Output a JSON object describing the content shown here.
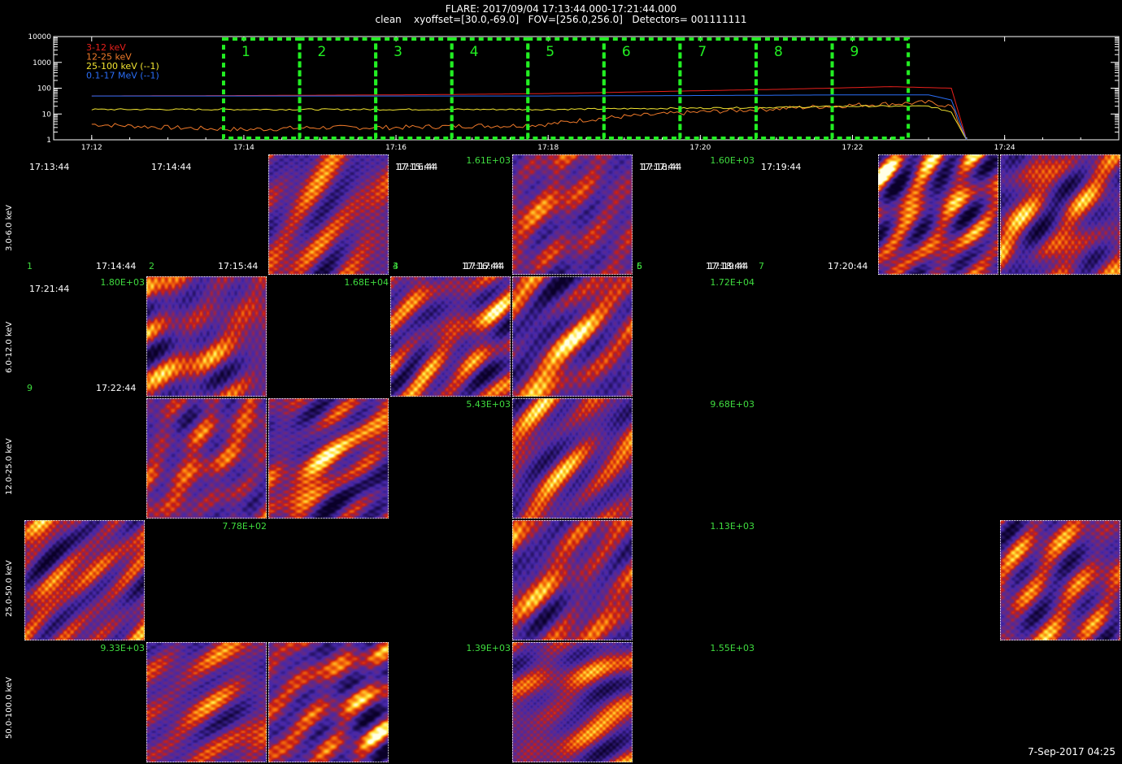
{
  "header": {
    "line1": "FLARE: 2017/09/04 17:13:44.000-17:21:44.000",
    "line2": "clean    xyoffset=[30.0,-69.0]   FOV=[256.0,256.0]   Detectors= 001111111"
  },
  "chart_data": {
    "type": "line",
    "title": "",
    "y_scale": "log",
    "ylim": [
      1,
      10000
    ],
    "y_ticks": [
      "1",
      "10",
      "100",
      "1000",
      "10000"
    ],
    "x_ticks": [
      "17:12",
      "17:14",
      "17:16",
      "17:18",
      "17:20",
      "17:22",
      "17:24"
    ],
    "x_range_minutes": [
      "17:11.5",
      "17:25.5"
    ],
    "legend": [
      {
        "label": "3-12 keV",
        "color": "#e8201c"
      },
      {
        "label": "12-25 keV",
        "color": "#f07a2a"
      },
      {
        "label": "25-100 keV (--1)",
        "color": "#f2e431"
      },
      {
        "label": "0.1-17 MeV (--1)",
        "color": "#2a6df5"
      }
    ],
    "series": [
      {
        "name": "3-12 keV",
        "color": "#e8201c",
        "t": [
          "17:12",
          "17:14",
          "17:16",
          "17:17",
          "17:18",
          "17:19",
          "17:20",
          "17:21",
          "17:22",
          "17:22.5",
          "17:23.3",
          "17:23.5"
        ],
        "values": [
          50,
          52,
          55,
          58,
          62,
          70,
          80,
          90,
          105,
          115,
          100,
          1
        ]
      },
      {
        "name": "12-25 keV",
        "color": "#f07a2a",
        "t": [
          "17:12",
          "17:13",
          "17:14",
          "17:15",
          "17:16",
          "17:17",
          "17:17.5",
          "17:18",
          "17:18.5",
          "17:19",
          "17:20",
          "17:21",
          "17:22",
          "17:23",
          "17:23.3",
          "17:23.5"
        ],
        "values": [
          4,
          3,
          2.5,
          3,
          3,
          3.5,
          3.5,
          4,
          6,
          8,
          12,
          16,
          22,
          28,
          20,
          1
        ]
      },
      {
        "name": "25-100 keV (--1)",
        "color": "#f2e431",
        "t": [
          "17:12",
          "17:14",
          "17:16",
          "17:18",
          "17:19",
          "17:20",
          "17:21",
          "17:22",
          "17:23",
          "17:23.3",
          "17:23.5"
        ],
        "values": [
          15,
          15,
          15,
          15,
          16,
          17,
          18,
          20,
          20,
          12,
          1
        ]
      },
      {
        "name": "0.1-17 MeV (--1)",
        "color": "#2a6df5",
        "t": [
          "17:12",
          "17:14",
          "17:16",
          "17:18",
          "17:20",
          "17:22",
          "17:23",
          "17:23.3",
          "17:23.5"
        ],
        "values": [
          50,
          50,
          50,
          50,
          52,
          55,
          55,
          35,
          1
        ]
      }
    ],
    "intervals": [
      {
        "label": "1",
        "start": "17:13:44",
        "end": "17:14:44"
      },
      {
        "label": "2",
        "start": "17:14:44",
        "end": "17:15:44"
      },
      {
        "label": "3",
        "start": "17:15:44",
        "end": "17:16:44"
      },
      {
        "label": "4",
        "start": "17:16:44",
        "end": "17:17:44"
      },
      {
        "label": "5",
        "start": "17:17:44",
        "end": "17:18:44"
      },
      {
        "label": "6",
        "start": "17:18:44",
        "end": "17:19:44"
      },
      {
        "label": "7",
        "start": "17:19:44",
        "end": "17:20:44"
      },
      {
        "label": "8",
        "start": "17:20:44",
        "end": "17:21:44"
      },
      {
        "label": "9",
        "start": "17:21:44",
        "end": "17:22:44"
      }
    ]
  },
  "row_labels": [
    "3.0-6.0 keV",
    "6.0-12.0 keV",
    "12.0-25.0 keV",
    "25.0-50.0 keV",
    "50.0-100.0 keV"
  ],
  "grid": {
    "time_labels": [
      {
        "text": "17:13:44",
        "col": 0,
        "row": 0,
        "corner": "tl"
      },
      {
        "text": "17:14:44",
        "col": 1,
        "row": 0,
        "corner": "tl"
      },
      {
        "text": "17:15:44",
        "col": 3,
        "row": 0,
        "corner": "tl"
      },
      {
        "text": "17:16:44",
        "col": 3,
        "row": 0,
        "corner": "tl2"
      },
      {
        "text": "17:17:44",
        "col": 5,
        "row": 0,
        "corner": "tl"
      },
      {
        "text": "17:18:44",
        "col": 5,
        "row": 0,
        "corner": "tl2"
      },
      {
        "text": "17:19:44",
        "col": 6,
        "row": 0,
        "corner": "tl"
      },
      {
        "text": "17:14:44",
        "col": 0,
        "row": 0,
        "corner": "br"
      },
      {
        "text": "17:15:44",
        "col": 1,
        "row": 0,
        "corner": "br"
      },
      {
        "text": "17:16:44",
        "col": 3,
        "row": 0,
        "corner": "br"
      },
      {
        "text": "17:17:44",
        "col": 3,
        "row": 0,
        "corner": "br2"
      },
      {
        "text": "17:18:44",
        "col": 5,
        "row": 0,
        "corner": "br"
      },
      {
        "text": "17:19:44",
        "col": 5,
        "row": 0,
        "corner": "br2"
      },
      {
        "text": "17:20:44",
        "col": 6,
        "row": 0,
        "corner": "br"
      },
      {
        "text": "17:21:44",
        "col": 0,
        "row": 1,
        "corner": "tl"
      },
      {
        "text": "17:22:44",
        "col": 0,
        "row": 1,
        "corner": "br"
      }
    ],
    "index_labels": [
      {
        "text": "1",
        "col": 0,
        "row": 0
      },
      {
        "text": "2",
        "col": 1,
        "row": 0
      },
      {
        "text": "3",
        "col": 3,
        "row": 0
      },
      {
        "text": "4",
        "col": 3,
        "row": 0
      },
      {
        "text": "5",
        "col": 5,
        "row": 0
      },
      {
        "text": "6",
        "col": 5,
        "row": 0
      },
      {
        "text": "7",
        "col": 6,
        "row": 0
      },
      {
        "text": "9",
        "col": 0,
        "row": 1
      }
    ],
    "peak_labels": [
      {
        "text": "1.61E+03",
        "col": 3,
        "row": 0
      },
      {
        "text": "1.60E+03",
        "col": 5,
        "row": 0
      },
      {
        "text": "1.80E+03",
        "col": 0,
        "row": 1
      },
      {
        "text": "1.68E+04",
        "col": 2,
        "row": 1
      },
      {
        "text": "1.72E+04",
        "col": 5,
        "row": 1
      },
      {
        "text": "5.43E+03",
        "col": 3,
        "row": 2
      },
      {
        "text": "9.68E+03",
        "col": 5,
        "row": 2
      },
      {
        "text": "7.78E+02",
        "col": 1,
        "row": 3
      },
      {
        "text": "1.13E+03",
        "col": 5,
        "row": 3
      },
      {
        "text": "9.33E+03",
        "col": 0,
        "row": 4
      },
      {
        "text": "1.39E+03",
        "col": 3,
        "row": 4
      },
      {
        "text": "1.55E+03",
        "col": 5,
        "row": 4
      }
    ],
    "tiles": [
      {
        "col": 2,
        "row": 0,
        "seed": 11
      },
      {
        "col": 4,
        "row": 0,
        "seed": 12
      },
      {
        "col": 7,
        "row": 0,
        "seed": 13
      },
      {
        "col": 8,
        "row": 0,
        "seed": 14
      },
      {
        "col": 1,
        "row": 1,
        "seed": 21
      },
      {
        "col": 3,
        "row": 1,
        "seed": 22
      },
      {
        "col": 4,
        "row": 1,
        "seed": 23
      },
      {
        "col": 1,
        "row": 2,
        "seed": 31
      },
      {
        "col": 2,
        "row": 2,
        "seed": 32
      },
      {
        "col": 4,
        "row": 2,
        "seed": 33
      },
      {
        "col": 0,
        "row": 3,
        "seed": 41
      },
      {
        "col": 4,
        "row": 3,
        "seed": 42
      },
      {
        "col": 8,
        "row": 3,
        "seed": 43
      },
      {
        "col": 1,
        "row": 4,
        "seed": 51
      },
      {
        "col": 2,
        "row": 4,
        "seed": 52
      },
      {
        "col": 4,
        "row": 4,
        "seed": 53
      }
    ]
  },
  "footer": {
    "timestamp": "7-Sep-2017 04:25"
  }
}
